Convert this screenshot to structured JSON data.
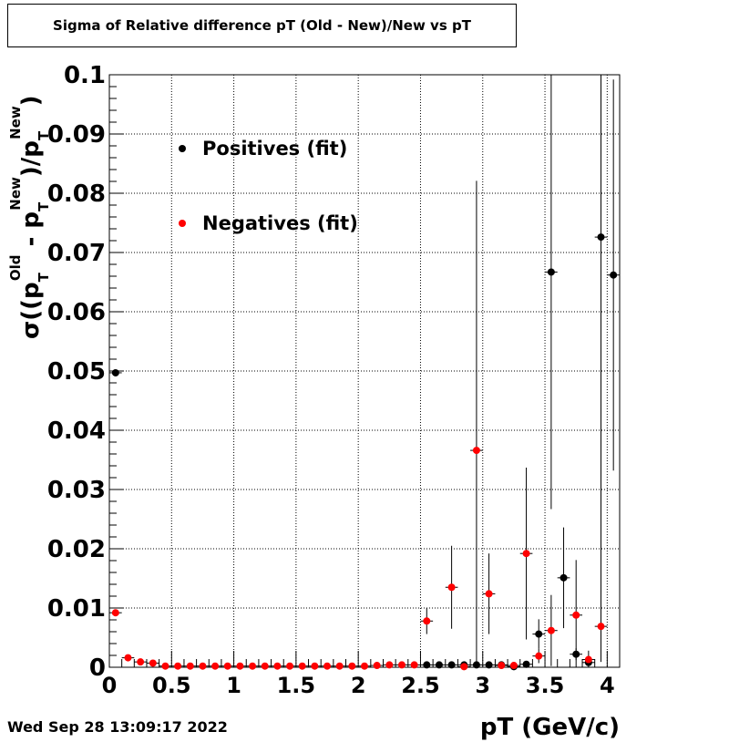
{
  "title": "Sigma of Relative difference pT (Old - New)/New vs pT",
  "datestamp": "Wed Sep 28 13:09:17 2022",
  "colors": {
    "positives": "#000000",
    "negatives": "#ff0000",
    "grid": "#000000"
  },
  "chart_data": {
    "type": "scatter",
    "title": "Sigma of Relative difference pT (Old - New)/New vs pT",
    "xlabel": "pT (GeV/c)",
    "ylabel": "σ((p_T^Old - p_T^New)/p_T^New)",
    "xlim": [
      0,
      4.1
    ],
    "ylim": [
      0,
      0.1
    ],
    "x_ticks": [
      "0",
      "0.5",
      "1",
      "1.5",
      "2",
      "2.5",
      "3",
      "3.5",
      "4"
    ],
    "y_ticks": [
      "0",
      "0.01",
      "0.02",
      "0.03",
      "0.04",
      "0.05",
      "0.06",
      "0.07",
      "0.08",
      "0.09",
      "0.1"
    ],
    "grid": true,
    "legend": "top-left",
    "series": [
      {
        "name": "Positives (fit)",
        "color": "#000000",
        "points": [
          {
            "x": 0.05,
            "y": 0.0497,
            "err": 0
          },
          {
            "x": 2.55,
            "y": 0.0004,
            "err": 0
          },
          {
            "x": 2.65,
            "y": 0.0004,
            "err": 0
          },
          {
            "x": 2.75,
            "y": 0.0004,
            "err": 0
          },
          {
            "x": 2.85,
            "y": 0.0004,
            "err": 0
          },
          {
            "x": 2.95,
            "y": 0.0004,
            "err": 0
          },
          {
            "x": 3.05,
            "y": 0.0004,
            "err": 0
          },
          {
            "x": 3.15,
            "y": 0.0004,
            "err": 0
          },
          {
            "x": 3.25,
            "y": 0.0001,
            "err": 0
          },
          {
            "x": 3.35,
            "y": 0.0005,
            "err": 0
          },
          {
            "x": 3.45,
            "y": 0.0056,
            "err": 0.0025
          },
          {
            "x": 3.55,
            "y": 0.0667,
            "err": 0.04
          },
          {
            "x": 3.65,
            "y": 0.0151,
            "err": 0.0085
          },
          {
            "x": 3.75,
            "y": 0.0022,
            "err": 0.001
          },
          {
            "x": 3.85,
            "y": 0.0008,
            "err": 0.0005
          },
          {
            "x": 3.95,
            "y": 0.0726,
            "err": 0.06
          },
          {
            "x": 4.05,
            "y": 0.0662,
            "err": 0.033
          }
        ]
      },
      {
        "name": "Negatives (fit)",
        "color": "#ff0000",
        "points": [
          {
            "x": 0.05,
            "y": 0.0092,
            "err": 0
          },
          {
            "x": 0.15,
            "y": 0.0016,
            "err": 0
          },
          {
            "x": 0.25,
            "y": 0.0009,
            "err": 0
          },
          {
            "x": 0.35,
            "y": 0.0007,
            "err": 0
          },
          {
            "x": 0.45,
            "y": 0.0002,
            "err": 0
          },
          {
            "x": 0.55,
            "y": 0.0002,
            "err": 0
          },
          {
            "x": 0.65,
            "y": 0.0002,
            "err": 0
          },
          {
            "x": 0.75,
            "y": 0.0002,
            "err": 0
          },
          {
            "x": 0.85,
            "y": 0.0002,
            "err": 0
          },
          {
            "x": 0.95,
            "y": 0.0002,
            "err": 0
          },
          {
            "x": 1.05,
            "y": 0.0002,
            "err": 0
          },
          {
            "x": 1.15,
            "y": 0.0002,
            "err": 0
          },
          {
            "x": 1.25,
            "y": 0.0002,
            "err": 0
          },
          {
            "x": 1.35,
            "y": 0.0002,
            "err": 0
          },
          {
            "x": 1.45,
            "y": 0.0002,
            "err": 0
          },
          {
            "x": 1.55,
            "y": 0.0002,
            "err": 0
          },
          {
            "x": 1.65,
            "y": 0.0002,
            "err": 0
          },
          {
            "x": 1.75,
            "y": 0.0002,
            "err": 0
          },
          {
            "x": 1.85,
            "y": 0.0002,
            "err": 0
          },
          {
            "x": 1.95,
            "y": 0.0002,
            "err": 0
          },
          {
            "x": 2.05,
            "y": 0.0002,
            "err": 0
          },
          {
            "x": 2.15,
            "y": 0.0003,
            "err": 0
          },
          {
            "x": 2.25,
            "y": 0.0004,
            "err": 0
          },
          {
            "x": 2.35,
            "y": 0.0004,
            "err": 0
          },
          {
            "x": 2.45,
            "y": 0.0004,
            "err": 0
          },
          {
            "x": 2.55,
            "y": 0.0078,
            "err": 0.0022
          },
          {
            "x": 2.75,
            "y": 0.0135,
            "err": 0.007
          },
          {
            "x": 2.85,
            "y": 0.0001,
            "err": 0
          },
          {
            "x": 2.95,
            "y": 0.0366,
            "err": 0.0455
          },
          {
            "x": 3.05,
            "y": 0.0124,
            "err": 0.0068
          },
          {
            "x": 3.15,
            "y": 0.0003,
            "err": 0
          },
          {
            "x": 3.25,
            "y": 0.0003,
            "err": 0
          },
          {
            "x": 3.35,
            "y": 0.0192,
            "err": 0.0145
          },
          {
            "x": 3.45,
            "y": 0.0019,
            "err": 0.0012
          },
          {
            "x": 3.55,
            "y": 0.0062,
            "err": 0.006
          },
          {
            "x": 3.75,
            "y": 0.0088,
            "err": 0.0093
          },
          {
            "x": 3.85,
            "y": 0.0013,
            "err": 0.0015
          },
          {
            "x": 3.95,
            "y": 0.0069,
            "err": 0.006
          }
        ]
      }
    ]
  }
}
